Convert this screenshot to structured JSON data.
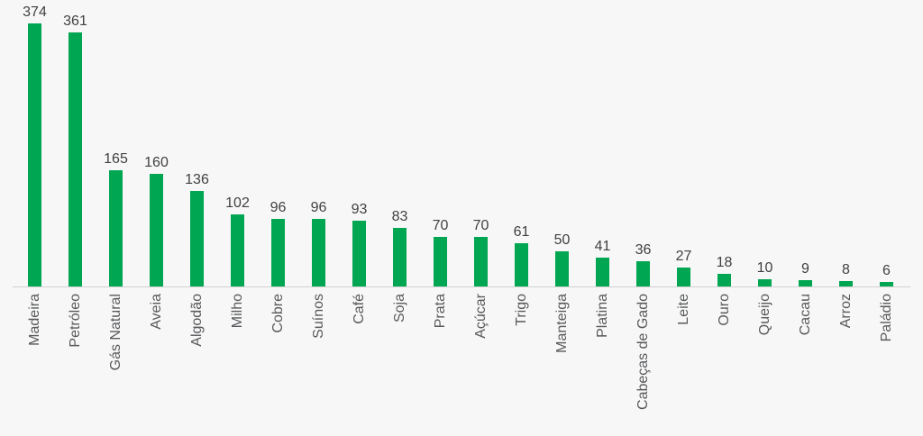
{
  "colors": {
    "bar": "#00a651",
    "value_label": "#414042",
    "category_label": "#58595b",
    "background": "#f7f7f7",
    "axis_line": "#d2d2d2"
  },
  "chart_data": {
    "type": "bar",
    "title": "",
    "xlabel": "",
    "ylabel": "",
    "categories": [
      "Madeira",
      "Petróleo",
      "Gás Natural",
      "Aveia",
      "Algodão",
      "Milho",
      "Cobre",
      "Suínos",
      "Café",
      "Soja",
      "Prata",
      "Açúcar",
      "Trigo",
      "Manteiga",
      "Platina",
      "Cabeças de Gado",
      "Leite",
      "Ouro",
      "Queijo",
      "Cacau",
      "Arroz",
      "Paládio"
    ],
    "values": [
      374,
      361,
      165,
      160,
      136,
      102,
      96,
      96,
      93,
      83,
      70,
      70,
      61,
      50,
      41,
      36,
      27,
      18,
      10,
      9,
      8,
      6
    ],
    "ylim": [
      0,
      374
    ],
    "grid": false,
    "legend": false,
    "data_labels": true,
    "category_label_rotation": -90
  }
}
